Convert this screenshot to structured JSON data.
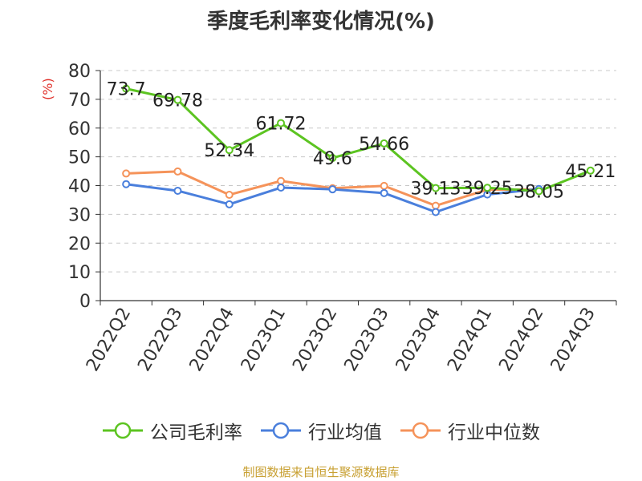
{
  "chart_data": {
    "type": "line",
    "title": "季度毛利率变化情况(%)",
    "ylabel": "(%)",
    "xlabel": "",
    "categories": [
      "2022Q2",
      "2022Q3",
      "2022Q4",
      "2023Q1",
      "2023Q2",
      "2023Q3",
      "2023Q4",
      "2024Q1",
      "2024Q2",
      "2024Q3"
    ],
    "ylim": [
      0,
      80
    ],
    "yticks": [
      0,
      10,
      20,
      30,
      40,
      50,
      60,
      70,
      80
    ],
    "grid": true,
    "legend_position": "bottom",
    "series": [
      {
        "name": "公司毛利率",
        "color": "#5cc421",
        "show_labels": true,
        "values": [
          73.7,
          69.78,
          52.34,
          61.72,
          49.6,
          54.66,
          39.13,
          39.25,
          38.05,
          45.21
        ]
      },
      {
        "name": "行业均值",
        "color": "#4a7fdc",
        "show_labels": false,
        "values": [
          40.5,
          38.2,
          33.5,
          39.3,
          38.7,
          37.4,
          30.8,
          36.9,
          38.8,
          null
        ]
      },
      {
        "name": "行业中位数",
        "color": "#f5935a",
        "show_labels": false,
        "values": [
          44.2,
          44.9,
          36.8,
          41.6,
          39.1,
          39.9,
          33.0,
          38.6,
          38.6,
          null
        ]
      }
    ],
    "source": "制图数据来自恒生聚源数据库"
  }
}
